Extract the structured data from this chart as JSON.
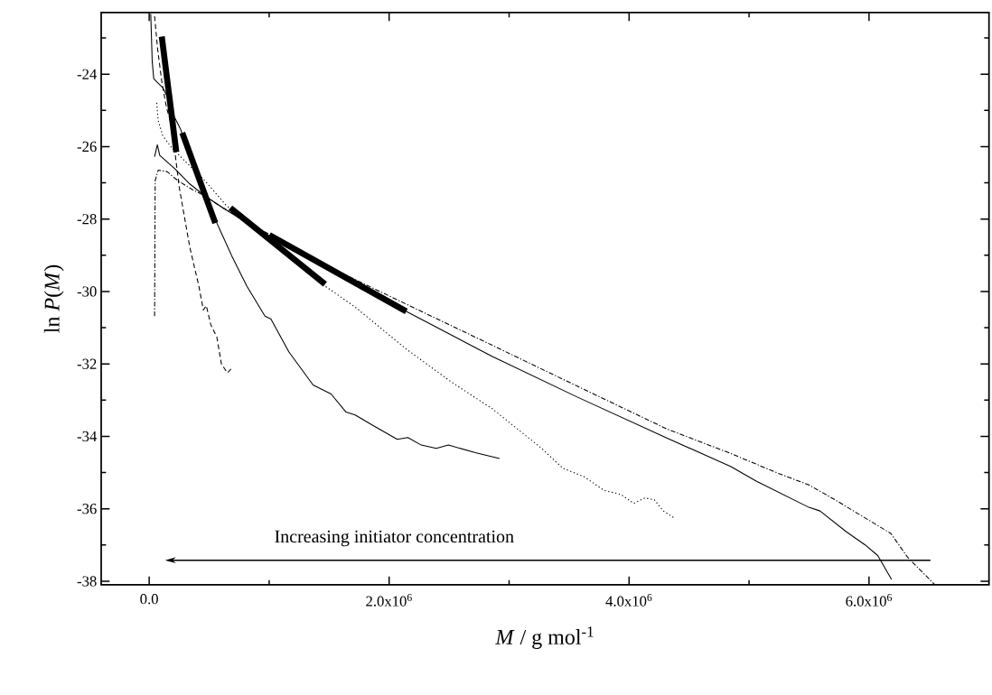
{
  "chart_data": {
    "type": "line",
    "xlabel": "*M* / g mol$^{-1}$",
    "ylabel": "ln *P*(*M*)",
    "xlim": [
      -400000,
      7000000
    ],
    "ylim": [
      -38.1,
      -22.3
    ],
    "xticks": [
      {
        "value": 0,
        "label": "0.0"
      },
      {
        "value": 1000000,
        "label": null
      },
      {
        "value": 2000000,
        "label": "2.0x10$^{6}$"
      },
      {
        "value": 3000000,
        "label": null
      },
      {
        "value": 4000000,
        "label": "4.0x10$^{6}$"
      },
      {
        "value": 5000000,
        "label": null
      },
      {
        "value": 6000000,
        "label": "6.0x10$^{6}$"
      }
    ],
    "yticks": [
      {
        "value": -23,
        "label": null
      },
      -24,
      {
        "value": -25,
        "label": null
      },
      -26,
      {
        "value": -27,
        "label": null
      },
      -28,
      {
        "value": -29,
        "label": null
      },
      -30,
      {
        "value": -31,
        "label": null
      },
      -32,
      {
        "value": -33,
        "label": null
      },
      -34,
      {
        "value": -35,
        "label": null
      },
      -36,
      {
        "value": -37,
        "label": null
      },
      -38
    ],
    "grid": false,
    "marker": "none",
    "annotations": [
      "Increasing initiator concentration"
    ],
    "series": [
      {
        "color": "#000000",
        "line_style": "dashed",
        "x": [
          45000,
          70000,
          105000,
          143000,
          193000,
          220000,
          250000,
          338000,
          414000,
          451000,
          476000,
          514000,
          564000,
          602000,
          652000,
          684000
        ],
        "values": [
          -22.4,
          -23.3,
          -24.2,
          -24.9,
          -25.5,
          -26.3,
          -27.11,
          -28.77,
          -29.85,
          -30.51,
          -30.39,
          -30.92,
          -31.26,
          -32.0,
          -32.25,
          -32.13
        ]
      },
      {
        "color": "#000000",
        "line_style": "solid",
        "x": [
          13000,
          25000,
          38000,
          63000,
          113000,
          163000,
          201000,
          263000,
          363000,
          464000,
          564000,
          689000,
          814000,
          965000,
          1015000,
          1165000,
          1366000,
          1516000,
          1641000,
          1717000,
          1867000,
          2068000,
          2156000,
          2268000,
          2393000,
          2494000,
          2719000,
          2920000
        ],
        "values": [
          -22.34,
          -23.63,
          -24.12,
          -24.21,
          -24.37,
          -24.7,
          -25.12,
          -25.53,
          -26.45,
          -27.27,
          -28.11,
          -29.02,
          -29.85,
          -30.68,
          -30.76,
          -31.67,
          -32.58,
          -32.83,
          -33.33,
          -33.41,
          -33.7,
          -34.08,
          -34.03,
          -34.24,
          -34.33,
          -34.24,
          -34.45,
          -34.61
        ]
      },
      {
        "color": "#000000",
        "line_style": "dotted",
        "x": [
          63000,
          75000,
          113000,
          188000,
          313000,
          464000,
          639000,
          1000000,
          1466000,
          1717000,
          2143000,
          2519000,
          2857000,
          3271000,
          3448000,
          3634000,
          3789000,
          3930000,
          4039000,
          4132000,
          4210000,
          4286000,
          4380000
        ],
        "values": [
          -24.79,
          -25.28,
          -25.7,
          -26.03,
          -26.45,
          -26.94,
          -27.61,
          -28.6,
          -29.85,
          -30.43,
          -31.59,
          -32.5,
          -33.23,
          -34.33,
          -34.88,
          -35.13,
          -35.49,
          -35.6,
          -35.85,
          -35.7,
          -35.75,
          -36.06,
          -36.26
        ]
      },
      {
        "color": "#000000",
        "line_style": "solid",
        "x": [
          45000,
          68000,
          88000,
          213000,
          338000,
          464000,
          614000,
          1015000,
          1516000,
          2143000,
          2857000,
          3572000,
          4318000,
          4846000,
          5063000,
          5499000,
          5592000,
          5809000,
          5965000,
          6073000,
          6188000
        ],
        "values": [
          -26.28,
          -25.95,
          -26.24,
          -26.61,
          -27.03,
          -27.36,
          -27.69,
          -28.52,
          -29.43,
          -30.55,
          -31.79,
          -32.92,
          -34.05,
          -34.83,
          -35.24,
          -35.96,
          -36.06,
          -36.63,
          -36.99,
          -37.29,
          -37.95
        ]
      },
      {
        "color": "#000000",
        "line_style": "dashdot",
        "x": [
          45000,
          50000,
          75000,
          150000,
          238000,
          363000,
          464000,
          614000,
          1015000,
          1516000,
          2143000,
          2857000,
          3572000,
          4318000,
          4846000,
          5250000,
          5499000,
          5716000,
          6182000,
          6322000,
          6547000
        ],
        "values": [
          -30.68,
          -26.94,
          -26.65,
          -26.69,
          -26.94,
          -27.19,
          -27.36,
          -27.69,
          -28.45,
          -29.35,
          -30.35,
          -31.48,
          -32.62,
          -33.8,
          -34.47,
          -35.03,
          -35.34,
          -35.75,
          -36.68,
          -37.34,
          -38.09
        ]
      },
      {
        "color": "#000000",
        "line_style": "solid",
        "x": [
          105000,
          226000
        ],
        "values": [
          -22.96,
          -26.15
        ]
      },
      {
        "color": "#000000",
        "line_style": "solid",
        "x": [
          276000,
          551000
        ],
        "values": [
          -25.62,
          -28.11
        ]
      },
      {
        "color": "#000000",
        "line_style": "solid",
        "x": [
          677000,
          1466000
        ],
        "values": [
          -27.69,
          -29.8
        ]
      },
      {
        "color": "#000000",
        "line_style": "solid",
        "x": [
          1002000,
          2143000
        ],
        "values": [
          -28.44,
          -30.55
        ]
      }
    ]
  }
}
